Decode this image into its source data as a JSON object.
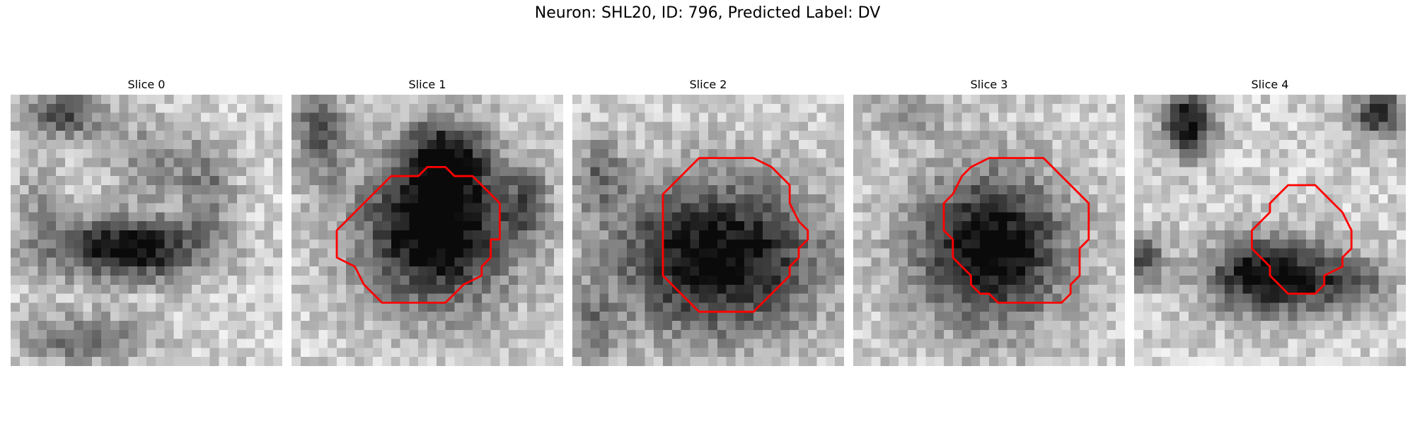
{
  "figure": {
    "title": "Neuron: SHL20, ID: 796, Predicted Label: DV"
  },
  "colors": {
    "contour": "#ff0000",
    "background": "#ffffff"
  },
  "panels": [
    {
      "title": "Slice 0"
    },
    {
      "title": "Slice 1"
    },
    {
      "title": "Slice 2"
    },
    {
      "title": "Slice 3"
    },
    {
      "title": "Slice 4"
    }
  ]
}
